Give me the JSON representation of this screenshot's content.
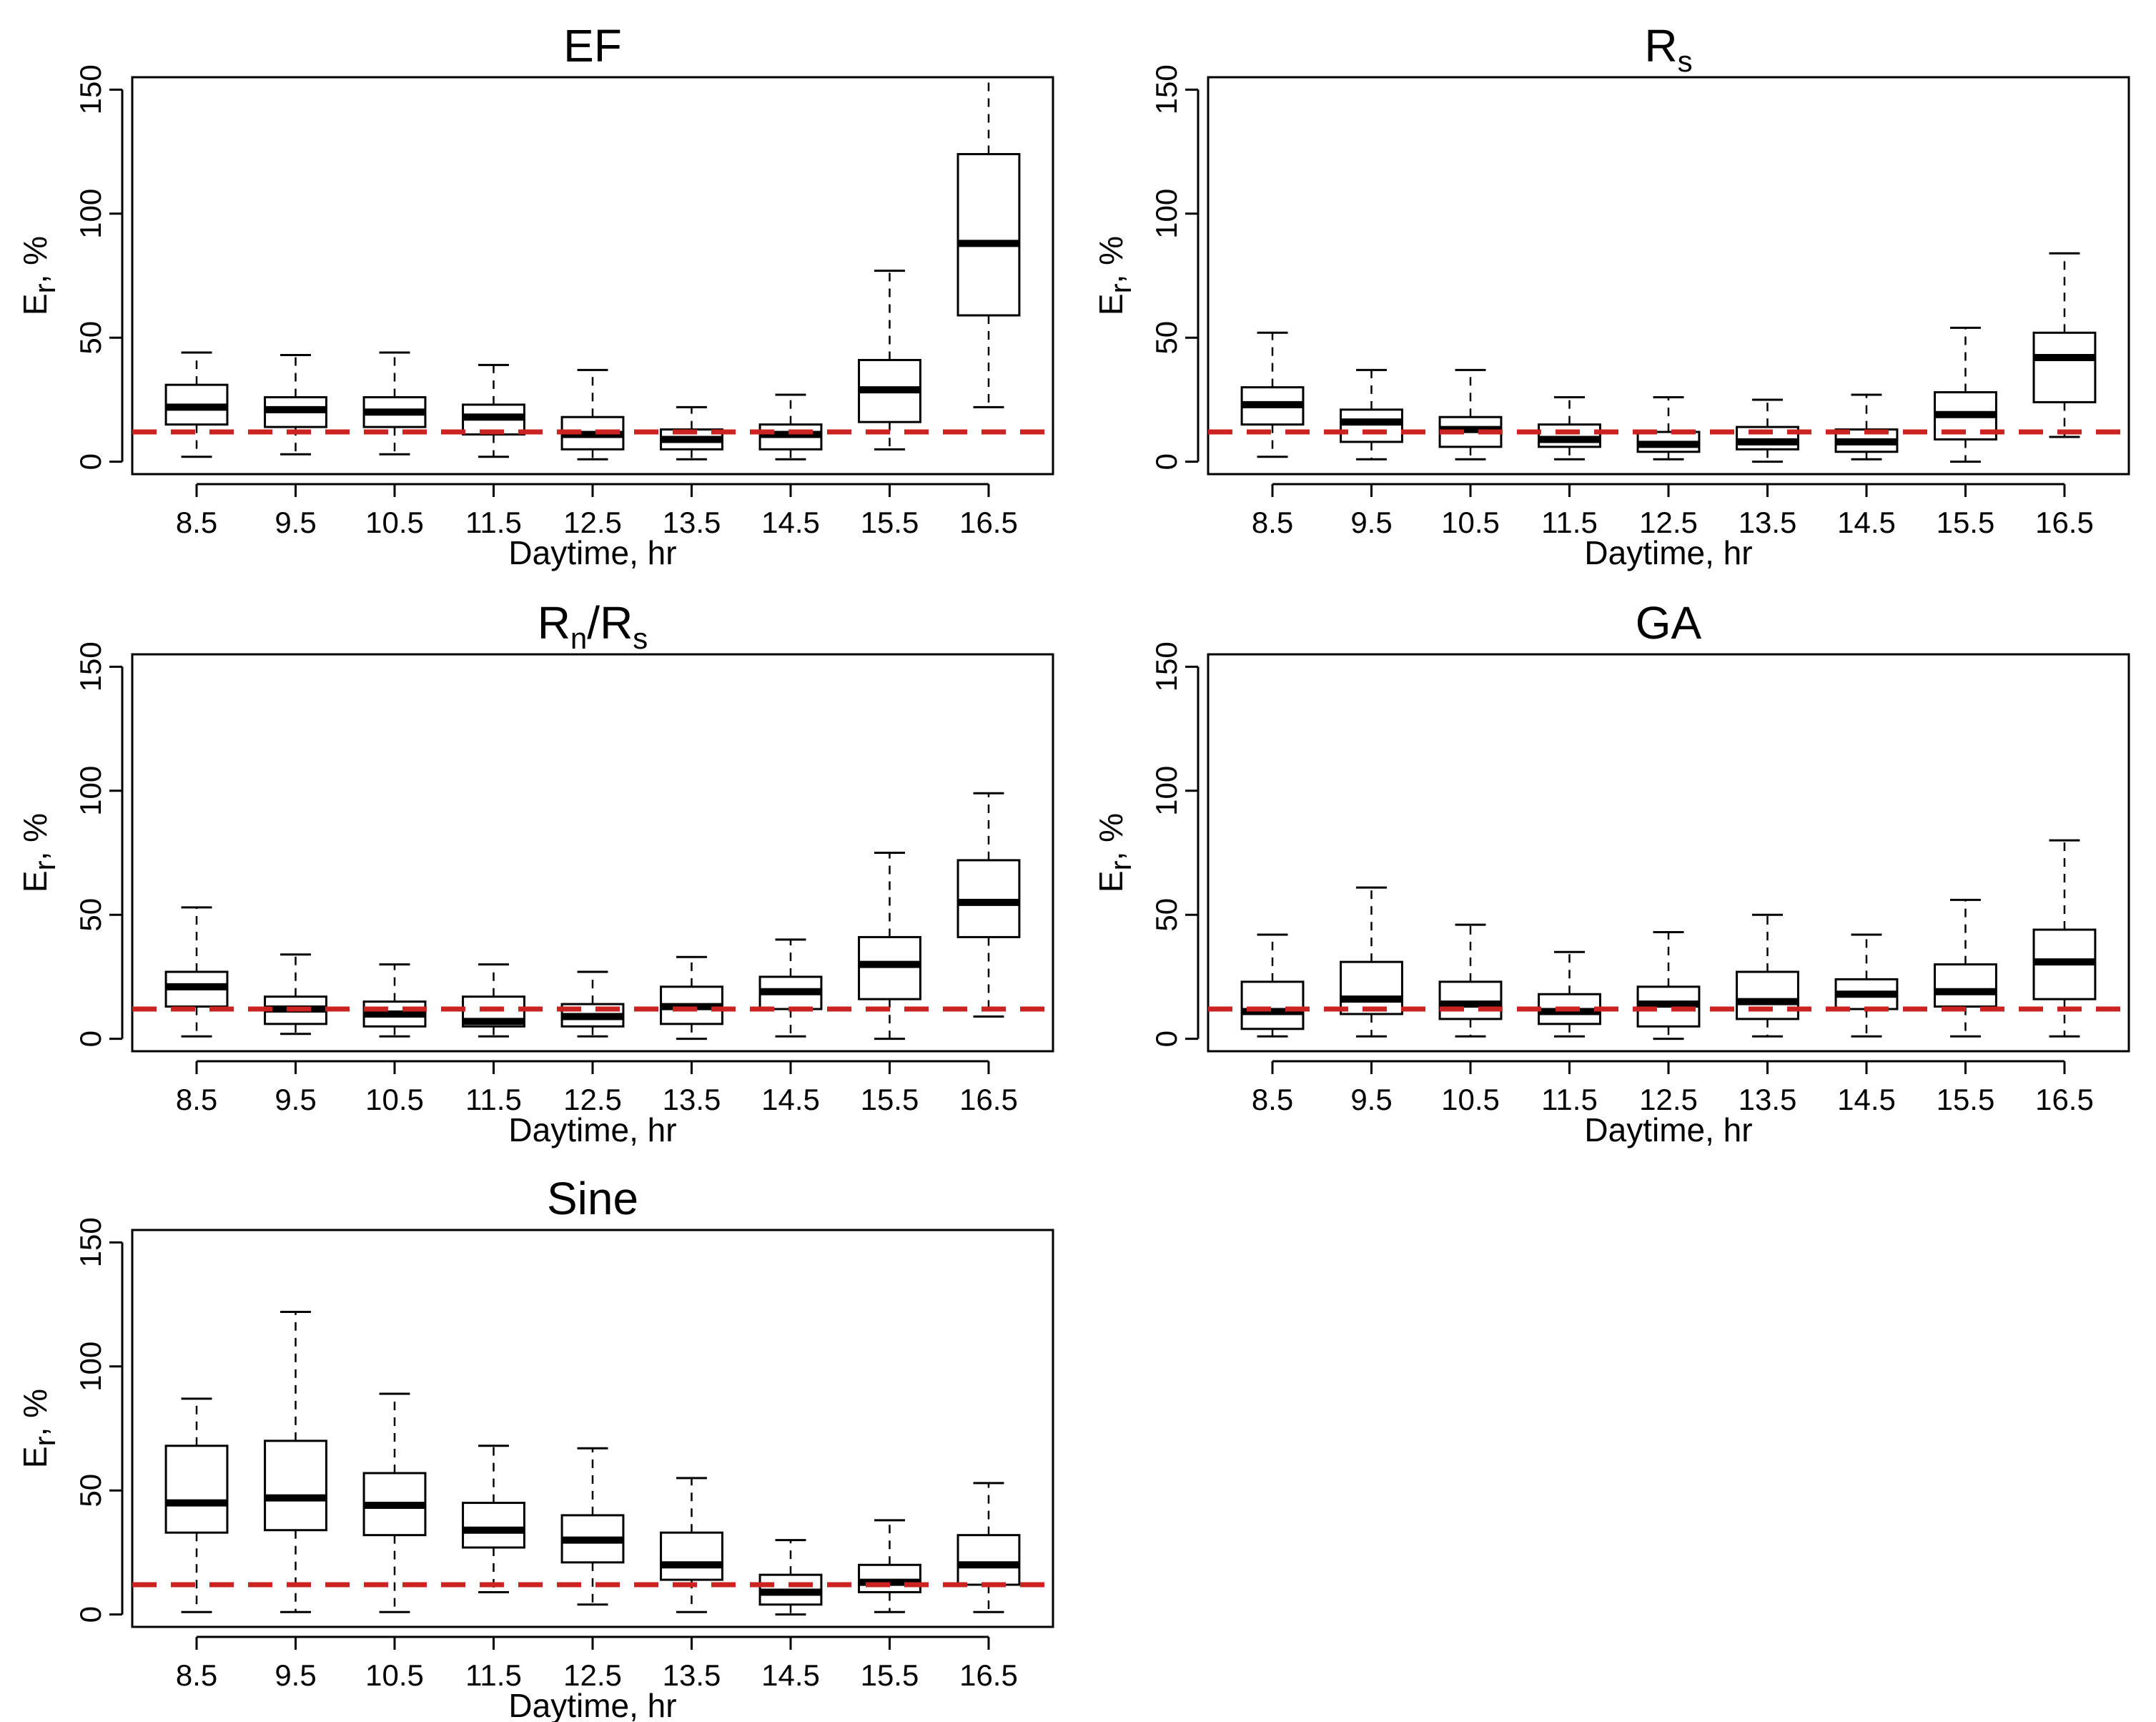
{
  "figure": {
    "reference_line_color": "#cc2222",
    "box_color": "#000000"
  },
  "chart_data": [
    {
      "type": "boxplot",
      "title": "EF",
      "title_main": "EF",
      "title_sub": "",
      "xlabel": "Daytime, hr",
      "ylabel": "Er, %",
      "ylabel_main": "E",
      "ylabel_sub": "r",
      "ylabel_suffix": ", %",
      "ylim": [
        -5,
        155
      ],
      "yticks": [
        0,
        50,
        100,
        150
      ],
      "ytick_labels": [
        "0",
        "50",
        "100",
        "150"
      ],
      "categories": [
        "8.5",
        "9.5",
        "10.5",
        "11.5",
        "12.5",
        "13.5",
        "14.5",
        "15.5",
        "16.5"
      ],
      "reference_line": 12,
      "boxes": [
        {
          "whisker_low": 2,
          "q1": 15,
          "median": 22,
          "q3": 31,
          "whisker_high": 44
        },
        {
          "whisker_low": 3,
          "q1": 14,
          "median": 21,
          "q3": 26,
          "whisker_high": 43
        },
        {
          "whisker_low": 3,
          "q1": 14,
          "median": 20,
          "q3": 26,
          "whisker_high": 44
        },
        {
          "whisker_low": 2,
          "q1": 11,
          "median": 18,
          "q3": 23,
          "whisker_high": 39
        },
        {
          "whisker_low": 1,
          "q1": 5,
          "median": 11,
          "q3": 18,
          "whisker_high": 37
        },
        {
          "whisker_low": 1,
          "q1": 5,
          "median": 9,
          "q3": 13,
          "whisker_high": 22
        },
        {
          "whisker_low": 1,
          "q1": 5,
          "median": 11,
          "q3": 15,
          "whisker_high": 27
        },
        {
          "whisker_low": 5,
          "q1": 16,
          "median": 29,
          "q3": 41,
          "whisker_high": 77
        },
        {
          "whisker_low": 22,
          "q1": 59,
          "median": 88,
          "q3": 124,
          "whisker_high": 155
        }
      ]
    },
    {
      "type": "boxplot",
      "title": "Rs",
      "title_main": "R",
      "title_sub": "s",
      "xlabel": "Daytime, hr",
      "ylabel": "Er, %",
      "ylabel_main": "E",
      "ylabel_sub": "r",
      "ylabel_suffix": ", %",
      "ylim": [
        -5,
        155
      ],
      "yticks": [
        0,
        50,
        100,
        150
      ],
      "ytick_labels": [
        "0",
        "50",
        "100",
        "150"
      ],
      "categories": [
        "8.5",
        "9.5",
        "10.5",
        "11.5",
        "12.5",
        "13.5",
        "14.5",
        "15.5",
        "16.5"
      ],
      "reference_line": 12,
      "boxes": [
        {
          "whisker_low": 2,
          "q1": 15,
          "median": 23,
          "q3": 30,
          "whisker_high": 52
        },
        {
          "whisker_low": 1,
          "q1": 8,
          "median": 16,
          "q3": 21,
          "whisker_high": 37
        },
        {
          "whisker_low": 1,
          "q1": 6,
          "median": 13,
          "q3": 18,
          "whisker_high": 37
        },
        {
          "whisker_low": 1,
          "q1": 6,
          "median": 9,
          "q3": 15,
          "whisker_high": 26
        },
        {
          "whisker_low": 1,
          "q1": 4,
          "median": 7,
          "q3": 12,
          "whisker_high": 26
        },
        {
          "whisker_low": 0,
          "q1": 5,
          "median": 8,
          "q3": 14,
          "whisker_high": 25
        },
        {
          "whisker_low": 1,
          "q1": 4,
          "median": 8,
          "q3": 13,
          "whisker_high": 27
        },
        {
          "whisker_low": 0,
          "q1": 9,
          "median": 19,
          "q3": 28,
          "whisker_high": 54
        },
        {
          "whisker_low": 10,
          "q1": 24,
          "median": 42,
          "q3": 52,
          "whisker_high": 84
        }
      ]
    },
    {
      "type": "boxplot",
      "title": "Rn/Rs",
      "title_main": "R",
      "title_sub": "n",
      "title_main2": "/R",
      "title_sub2": "s",
      "xlabel": "Daytime, hr",
      "ylabel": "Er, %",
      "ylabel_main": "E",
      "ylabel_sub": "r",
      "ylabel_suffix": ", %",
      "ylim": [
        -5,
        155
      ],
      "yticks": [
        0,
        50,
        100,
        150
      ],
      "ytick_labels": [
        "0",
        "50",
        "100",
        "150"
      ],
      "categories": [
        "8.5",
        "9.5",
        "10.5",
        "11.5",
        "12.5",
        "13.5",
        "14.5",
        "15.5",
        "16.5"
      ],
      "reference_line": 12,
      "boxes": [
        {
          "whisker_low": 1,
          "q1": 13,
          "median": 21,
          "q3": 27,
          "whisker_high": 53
        },
        {
          "whisker_low": 2,
          "q1": 6,
          "median": 12,
          "q3": 17,
          "whisker_high": 34
        },
        {
          "whisker_low": 1,
          "q1": 5,
          "median": 10,
          "q3": 15,
          "whisker_high": 30
        },
        {
          "whisker_low": 1,
          "q1": 5,
          "median": 7,
          "q3": 17,
          "whisker_high": 30
        },
        {
          "whisker_low": 1,
          "q1": 5,
          "median": 9,
          "q3": 14,
          "whisker_high": 27
        },
        {
          "whisker_low": 0,
          "q1": 6,
          "median": 13,
          "q3": 21,
          "whisker_high": 33
        },
        {
          "whisker_low": 1,
          "q1": 12,
          "median": 19,
          "q3": 25,
          "whisker_high": 40
        },
        {
          "whisker_low": 0,
          "q1": 16,
          "median": 30,
          "q3": 41,
          "whisker_high": 75
        },
        {
          "whisker_low": 9,
          "q1": 41,
          "median": 55,
          "q3": 72,
          "whisker_high": 99
        }
      ]
    },
    {
      "type": "boxplot",
      "title": "GA",
      "title_main": "GA",
      "title_sub": "",
      "xlabel": "Daytime, hr",
      "ylabel": "Er, %",
      "ylabel_main": "E",
      "ylabel_sub": "r",
      "ylabel_suffix": ", %",
      "ylim": [
        -5,
        155
      ],
      "yticks": [
        0,
        50,
        100,
        150
      ],
      "ytick_labels": [
        "0",
        "50",
        "100",
        "150"
      ],
      "categories": [
        "8.5",
        "9.5",
        "10.5",
        "11.5",
        "12.5",
        "13.5",
        "14.5",
        "15.5",
        "16.5"
      ],
      "reference_line": 12,
      "boxes": [
        {
          "whisker_low": 1,
          "q1": 4,
          "median": 11,
          "q3": 23,
          "whisker_high": 42
        },
        {
          "whisker_low": 1,
          "q1": 10,
          "median": 16,
          "q3": 31,
          "whisker_high": 61
        },
        {
          "whisker_low": 1,
          "q1": 8,
          "median": 14,
          "q3": 23,
          "whisker_high": 46
        },
        {
          "whisker_low": 1,
          "q1": 6,
          "median": 11,
          "q3": 18,
          "whisker_high": 35
        },
        {
          "whisker_low": 0,
          "q1": 5,
          "median": 14,
          "q3": 21,
          "whisker_high": 43
        },
        {
          "whisker_low": 1,
          "q1": 8,
          "median": 15,
          "q3": 27,
          "whisker_high": 50
        },
        {
          "whisker_low": 1,
          "q1": 12,
          "median": 18,
          "q3": 24,
          "whisker_high": 42
        },
        {
          "whisker_low": 1,
          "q1": 13,
          "median": 19,
          "q3": 30,
          "whisker_high": 56
        },
        {
          "whisker_low": 1,
          "q1": 16,
          "median": 31,
          "q3": 44,
          "whisker_high": 80
        }
      ]
    },
    {
      "type": "boxplot",
      "title": "Sine",
      "title_main": "Sine",
      "title_sub": "",
      "xlabel": "Daytime, hr",
      "ylabel": "Er, %",
      "ylabel_main": "E",
      "ylabel_sub": "r",
      "ylabel_suffix": ", %",
      "ylim": [
        -5,
        155
      ],
      "yticks": [
        0,
        50,
        100,
        150
      ],
      "ytick_labels": [
        "0",
        "50",
        "100",
        "150"
      ],
      "categories": [
        "8.5",
        "9.5",
        "10.5",
        "11.5",
        "12.5",
        "13.5",
        "14.5",
        "15.5",
        "16.5"
      ],
      "reference_line": 12,
      "boxes": [
        {
          "whisker_low": 1,
          "q1": 33,
          "median": 45,
          "q3": 68,
          "whisker_high": 87
        },
        {
          "whisker_low": 1,
          "q1": 34,
          "median": 47,
          "q3": 70,
          "whisker_high": 122
        },
        {
          "whisker_low": 1,
          "q1": 32,
          "median": 44,
          "q3": 57,
          "whisker_high": 89
        },
        {
          "whisker_low": 9,
          "q1": 27,
          "median": 34,
          "q3": 45,
          "whisker_high": 68
        },
        {
          "whisker_low": 4,
          "q1": 21,
          "median": 30,
          "q3": 40,
          "whisker_high": 67
        },
        {
          "whisker_low": 1,
          "q1": 14,
          "median": 20,
          "q3": 33,
          "whisker_high": 55
        },
        {
          "whisker_low": 0,
          "q1": 4,
          "median": 9,
          "q3": 16,
          "whisker_high": 30
        },
        {
          "whisker_low": 1,
          "q1": 9,
          "median": 13,
          "q3": 20,
          "whisker_high": 38
        },
        {
          "whisker_low": 1,
          "q1": 12,
          "median": 20,
          "q3": 32,
          "whisker_high": 53
        }
      ]
    }
  ]
}
